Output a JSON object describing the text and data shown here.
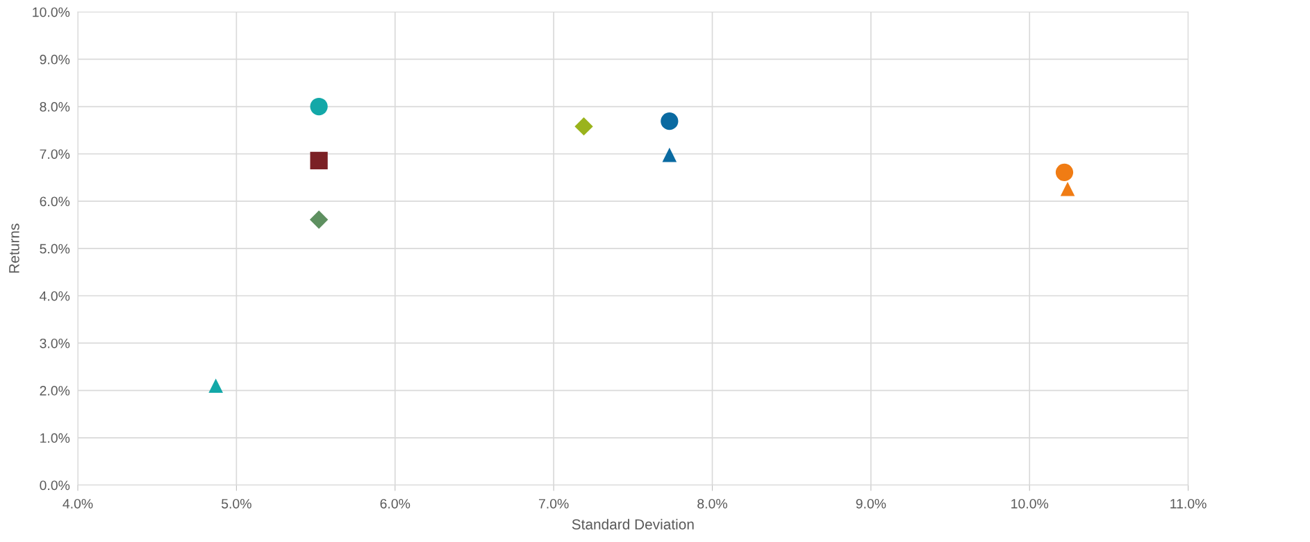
{
  "chart_data": {
    "type": "scatter",
    "xlabel": "Standard Deviation",
    "ylabel": "Returns",
    "grid": true,
    "xlim": [
      4,
      11
    ],
    "ylim": [
      0,
      10
    ],
    "xticks": [
      {
        "value": 4,
        "label": "4.0%"
      },
      {
        "value": 5,
        "label": "5.0%"
      },
      {
        "value": 6,
        "label": "6.0%"
      },
      {
        "value": 7,
        "label": "7.0%"
      },
      {
        "value": 8,
        "label": "8.0%"
      },
      {
        "value": 9,
        "label": "9.0%"
      },
      {
        "value": 10,
        "label": "10.0%"
      },
      {
        "value": 11,
        "label": "11.0%"
      }
    ],
    "yticks": [
      {
        "value": 0,
        "label": "0.0%"
      },
      {
        "value": 1,
        "label": "1.0%"
      },
      {
        "value": 2,
        "label": "2.0%"
      },
      {
        "value": 3,
        "label": "3.0%"
      },
      {
        "value": 4,
        "label": "4.0%"
      },
      {
        "value": 5,
        "label": "5.0%"
      },
      {
        "value": 6,
        "label": "6.0%"
      },
      {
        "value": 7,
        "label": "7.0%"
      },
      {
        "value": 8,
        "label": "8.0%"
      },
      {
        "value": 9,
        "label": "9.0%"
      },
      {
        "value": 10,
        "label": "10.0%"
      }
    ],
    "series": [
      {
        "color": "#13a8a8",
        "marker": "circle",
        "x": [
          5.52
        ],
        "values": [
          8.0
        ]
      },
      {
        "color": "#7b2025",
        "marker": "square",
        "x": [
          5.52
        ],
        "values": [
          6.86
        ]
      },
      {
        "color": "#5e9060",
        "marker": "diamond",
        "x": [
          5.52
        ],
        "values": [
          5.61
        ]
      },
      {
        "color": "#13a8a8",
        "marker": "triangle",
        "x": [
          4.87
        ],
        "values": [
          2.1
        ]
      },
      {
        "color": "#9ab31c",
        "marker": "diamond",
        "x": [
          7.19
        ],
        "values": [
          7.58
        ]
      },
      {
        "color": "#0a6aa1",
        "marker": "circle",
        "x": [
          7.73
        ],
        "values": [
          7.69
        ]
      },
      {
        "color": "#0a6aa1",
        "marker": "triangle",
        "x": [
          7.73
        ],
        "values": [
          6.98
        ]
      },
      {
        "color": "#f07c14",
        "marker": "circle",
        "x": [
          10.22
        ],
        "values": [
          6.61
        ]
      },
      {
        "color": "#f07c14",
        "marker": "triangle",
        "x": [
          10.24
        ],
        "values": [
          6.26
        ]
      }
    ]
  }
}
